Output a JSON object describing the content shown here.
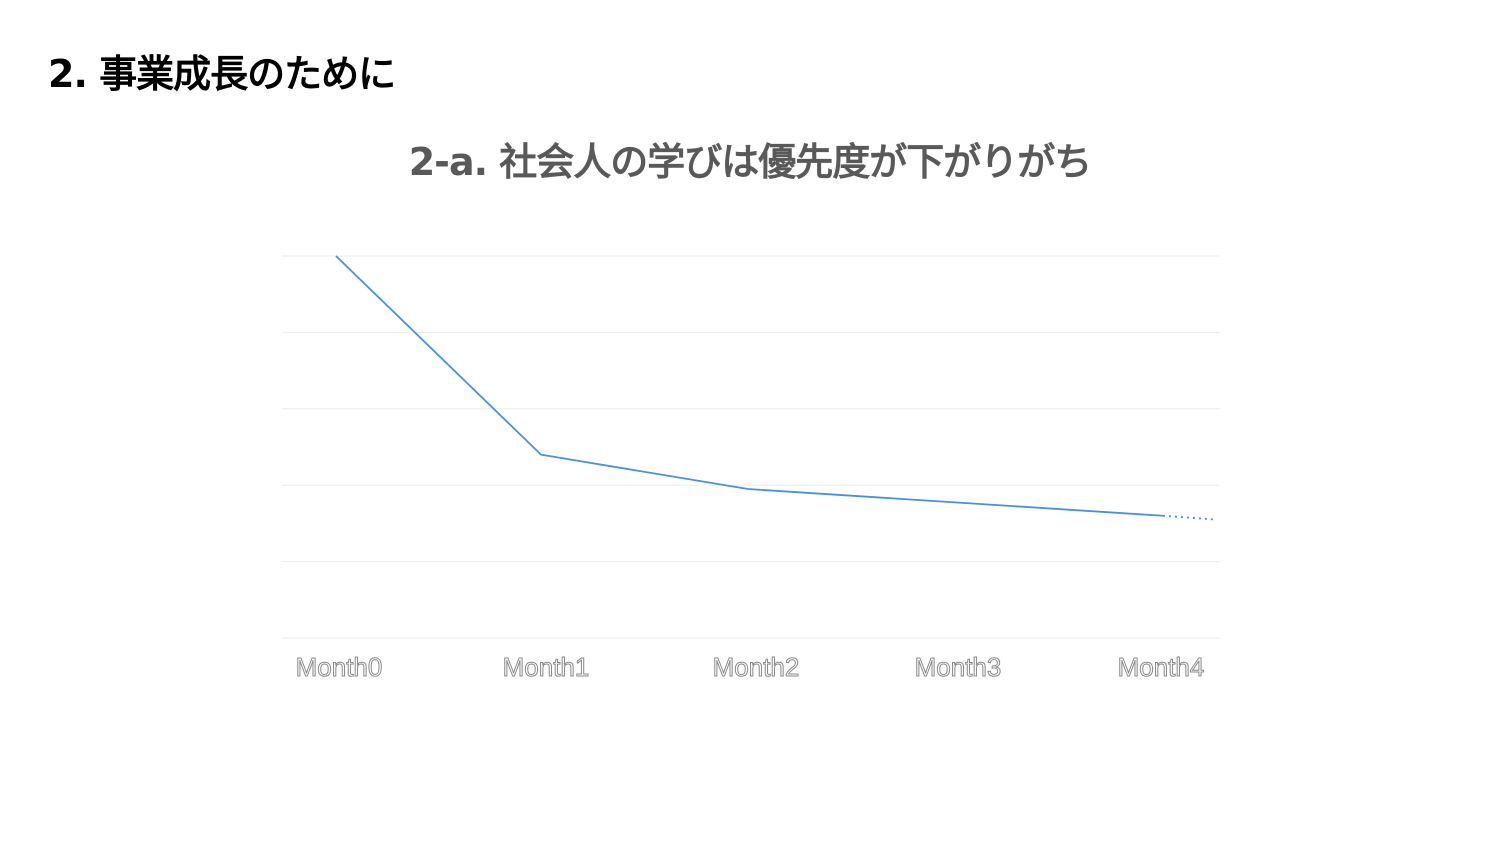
{
  "slide": {
    "title": "2. 事業成長のために"
  },
  "chart_data": {
    "type": "line",
    "title": "2-a. 社会人の学びは優先度が下がりがち",
    "xlabel": "",
    "ylabel": "",
    "categories": [
      "Month0",
      "Month1",
      "Month2",
      "Month3",
      "Month4"
    ],
    "series": [
      {
        "values": [
          100,
          48,
          39,
          35.5,
          32
        ]
      }
    ],
    "forecast_end_value": 31,
    "ylim": [
      0,
      100
    ],
    "gridlines": [
      0,
      20,
      40,
      60,
      80,
      100
    ],
    "grid": true,
    "legend": "none",
    "y_tick_labels_shown": false,
    "line_color": "#4a8fe0",
    "gridline_color": "#ebebeb"
  }
}
